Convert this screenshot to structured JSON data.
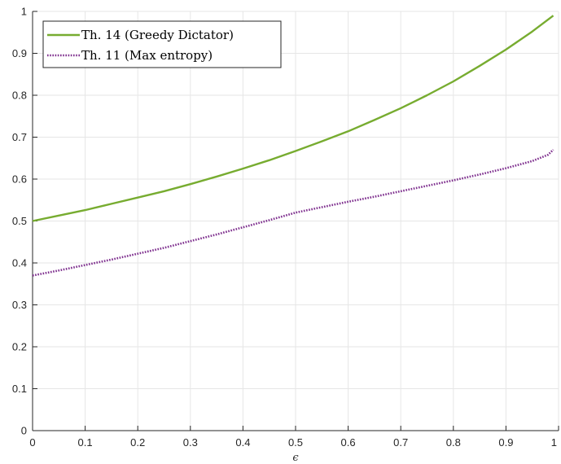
{
  "chart_data": {
    "type": "line",
    "title": "",
    "xlabel": "ϵ",
    "ylabel": "",
    "xlim": [
      0,
      1
    ],
    "ylim": [
      0,
      1
    ],
    "x_ticks": [
      "0",
      "0.1",
      "0.2",
      "0.3",
      "0.4",
      "0.5",
      "0.6",
      "0.7",
      "0.8",
      "0.9",
      "1"
    ],
    "y_ticks": [
      "0",
      "0.1",
      "0.2",
      "0.3",
      "0.4",
      "0.5",
      "0.6",
      "0.7",
      "0.8",
      "0.9",
      "1"
    ],
    "grid": true,
    "legend_position": "top-left",
    "series": [
      {
        "name": "Th. 14 (Greedy Dictator)",
        "color": "#77AC30",
        "style": "solid",
        "x": [
          0.0,
          0.05,
          0.1,
          0.15,
          0.2,
          0.25,
          0.3,
          0.35,
          0.4,
          0.45,
          0.5,
          0.55,
          0.6,
          0.65,
          0.7,
          0.75,
          0.8,
          0.85,
          0.9,
          0.95,
          0.99
        ],
        "y": [
          0.5,
          0.513,
          0.526,
          0.541,
          0.556,
          0.571,
          0.588,
          0.606,
          0.625,
          0.645,
          0.667,
          0.69,
          0.714,
          0.741,
          0.769,
          0.8,
          0.833,
          0.87,
          0.909,
          0.952,
          0.99
        ]
      },
      {
        "name": "Th. 11 (Max entropy)",
        "color": "#7E2F8E",
        "style": "dotted",
        "x": [
          0.0,
          0.05,
          0.1,
          0.15,
          0.2,
          0.25,
          0.3,
          0.35,
          0.4,
          0.45,
          0.5,
          0.55,
          0.6,
          0.65,
          0.7,
          0.75,
          0.8,
          0.85,
          0.9,
          0.95,
          0.98,
          0.99
        ],
        "y": [
          0.37,
          0.382,
          0.395,
          0.408,
          0.422,
          0.436,
          0.452,
          0.468,
          0.485,
          0.502,
          0.52,
          0.533,
          0.546,
          0.558,
          0.571,
          0.584,
          0.597,
          0.611,
          0.626,
          0.643,
          0.658,
          0.67
        ]
      }
    ]
  }
}
